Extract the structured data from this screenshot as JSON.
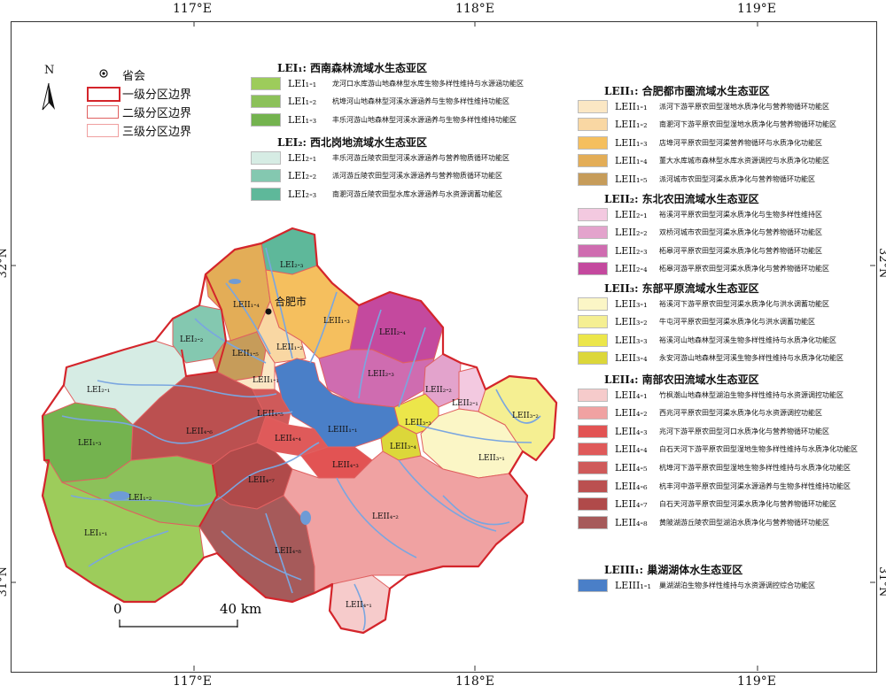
{
  "axes": {
    "top": [
      "117°E",
      "118°E",
      "119°E"
    ],
    "bottom": [
      "117°E",
      "118°E",
      "119°E"
    ],
    "left": [
      "32°N",
      "31°N"
    ],
    "right": [
      "32°N",
      "31°N"
    ]
  },
  "north_label": "N",
  "boundary_key": {
    "capital": "省会",
    "level1": "一级分区边界",
    "level2": "二级分区边界",
    "level3": "三级分区边界"
  },
  "scale_bar": {
    "start": "0",
    "end": "40 km"
  },
  "city_label": "合肥市",
  "colors": {
    "lake": "#4a7fc8",
    "level1_border": "#d4252b",
    "level2_border": "#e06060",
    "level3_border": "#f0a0a0",
    "river": "#7aa6e0"
  },
  "legend": {
    "groups": [
      {
        "title": "LEI₁: 西南森林流域水生态亚区",
        "items": [
          {
            "code": "LEI₁-₁",
            "desc": "龙河口水库游山地森林型水库生物多样性维持与水源涵功能区",
            "color": "#9dcc5b"
          },
          {
            "code": "LEI₁-₂",
            "desc": "杭埠河山地森林型河溪水源涵养与生物多样性维持功能区",
            "color": "#8cc15a"
          },
          {
            "code": "LEI₁-₃",
            "desc": "丰乐河游山地森林型河溪水源涵养与生物多样性维持功能区",
            "color": "#74b34f"
          }
        ]
      },
      {
        "title": "LEI₂: 西北岗地流域水生态亚区",
        "items": [
          {
            "code": "LEI₂-₁",
            "desc": "丰乐河游丘陵农田型河溪水源涵养与营养物质循环功能区",
            "color": "#d6ece4"
          },
          {
            "code": "LEI₂-₂",
            "desc": "派河游丘陵农田型河溪水源涵养与营养物质循环功能区",
            "color": "#84c8b0"
          },
          {
            "code": "LEI₂-₃",
            "desc": "南淝河游丘陵农田型水库水源涵养与水资源调蓄功能区",
            "color": "#5eb89a"
          }
        ]
      },
      {
        "title": "LEII₁: 合肥都市圈流域水生态亚区",
        "items": [
          {
            "code": "LEII₁-₁",
            "desc": "派河下游平原农田型湿地水质净化与营养物循环功能区",
            "color": "#fbe7c4"
          },
          {
            "code": "LEII₁-₂",
            "desc": "南淝河下游平原农田型湿地水质净化与营养物循环功能区",
            "color": "#f9d7a3"
          },
          {
            "code": "LEII₁-₃",
            "desc": "店埠河平原农田型河渠营养物循环与水质净化功能区",
            "color": "#f5bf5e"
          },
          {
            "code": "LEII₁-₄",
            "desc": "董大水库城市森林型水库水资源调控与水质净化功能区",
            "color": "#e3ad57"
          },
          {
            "code": "LEII₁-₅",
            "desc": "派河城市农田型河渠水质净化与营养物循环功能区",
            "color": "#c69c5a"
          }
        ]
      },
      {
        "title": "LEII₂: 东北农田流域水生态亚区",
        "items": [
          {
            "code": "LEII₂-₁",
            "desc": "裕溪河平原农田型河渠水质净化与生物多样性维持区",
            "color": "#f3c9e0"
          },
          {
            "code": "LEII₂-₂",
            "desc": "双桥河城市农田型河渠水质净化与营养物循环功能区",
            "color": "#e3a3cc"
          },
          {
            "code": "LEII₂-₃",
            "desc": "柘皋河平原农田型河渠水质净化与营养物循环功能区",
            "color": "#cf6cb0"
          },
          {
            "code": "LEII₂-₄",
            "desc": "柘皋河游平原农田型河渠水质净化与营养物循环功能区",
            "color": "#c4499e"
          }
        ]
      },
      {
        "title": "LEII₃: 东部平原流域水生态亚区",
        "items": [
          {
            "code": "LEII₃-₁",
            "desc": "裕溪河下游平原农田型河渠水质净化与洪水调蓄功能区",
            "color": "#fbf6c6"
          },
          {
            "code": "LEII₃-₂",
            "desc": "牛屯河平原农田型河渠水质净化与洪水调蓄功能区",
            "color": "#f5ef92"
          },
          {
            "code": "LEII₃-₃",
            "desc": "裕溪河山地森林型河溪生物多样性维持与水质净化功能区",
            "color": "#ece64a"
          },
          {
            "code": "LEII₃-₄",
            "desc": "永安河游山地森林型河溪生物多样性维持与水质净化功能区",
            "color": "#dcd73a"
          }
        ]
      },
      {
        "title": "LEII₄: 南部农田流域水生态亚区",
        "items": [
          {
            "code": "LEII₄-₁",
            "desc": "竹枫潮山地森林型湖泊生物多样性维持与水资源调控功能区",
            "color": "#f6cbcb"
          },
          {
            "code": "LEII₄-₂",
            "desc": "西兆河平原农田型河渠水质净化与水资源调控功能区",
            "color": "#f0a2a2"
          },
          {
            "code": "LEII₄-₃",
            "desc": "兆河下游平原农田型河口水质净化与营养物循环功能区",
            "color": "#e25353"
          },
          {
            "code": "LEII₄-₄",
            "desc": "白石天河下游平原农田型湿地生物多样性维持与水质净化功能区",
            "color": "#df5a5a"
          },
          {
            "code": "LEII₄-₅",
            "desc": "杭埠河下游平原农田型湿地生物多样性维持与水质净化功能区",
            "color": "#cf5a5a"
          },
          {
            "code": "LEII₄-₆",
            "desc": "杭丰河中游平原农田型河渠水源涵养与生物多样性维持功能区",
            "color": "#bb5050"
          },
          {
            "code": "LEII₄-₇",
            "desc": "白石天河游平原农田型河渠水质净化与营养物循环功能区",
            "color": "#b04a4a"
          },
          {
            "code": "LEII₄-₈",
            "desc": "黄陂湖游丘陵农田型湖泊水质净化与营养物循环功能区",
            "color": "#a65a5a"
          }
        ]
      },
      {
        "title": "LEIII₁: 巢湖湖体水生态亚区",
        "items": [
          {
            "code": "LEIII₁-₁",
            "desc": "巢湖湖泊生物多样性维持与水资源调控综合功能区",
            "color": "#4a7fc8"
          }
        ]
      }
    ]
  },
  "region_labels": [
    {
      "id": "LEI1-1",
      "text": "LEI₁-₁"
    },
    {
      "id": "LEI1-2",
      "text": "LEI₁-₂"
    },
    {
      "id": "LEI1-3",
      "text": "LEI₁-₃"
    },
    {
      "id": "LEI2-1",
      "text": "LEI₂-₁"
    },
    {
      "id": "LEI2-2",
      "text": "LEI₂-₂"
    },
    {
      "id": "LEI2-3",
      "text": "LEI₂-₃"
    },
    {
      "id": "LEII1-1",
      "text": "LEII₁-₁"
    },
    {
      "id": "LEII1-2",
      "text": "LEII₁-₂"
    },
    {
      "id": "LEII1-3",
      "text": "LEII₁-₃"
    },
    {
      "id": "LEII1-4",
      "text": "LEII₁-₄"
    },
    {
      "id": "LEII1-5",
      "text": "LEII₁-₅"
    },
    {
      "id": "LEII2-1",
      "text": "LEII₂-₁"
    },
    {
      "id": "LEII2-2",
      "text": "LEII₂-₂"
    },
    {
      "id": "LEII2-3",
      "text": "LEII₂-₃"
    },
    {
      "id": "LEII2-4",
      "text": "LEII₂-₄"
    },
    {
      "id": "LEII3-1",
      "text": "LEII₃-₁"
    },
    {
      "id": "LEII3-2",
      "text": "LEII₃-₂"
    },
    {
      "id": "LEII3-3",
      "text": "LEII₃-₃"
    },
    {
      "id": "LEII3-4",
      "text": "LEII₃-₄"
    },
    {
      "id": "LEII4-1",
      "text": "LEII₄-₁"
    },
    {
      "id": "LEII4-2",
      "text": "LEII₄-₂"
    },
    {
      "id": "LEII4-3",
      "text": "LEII₄-₃"
    },
    {
      "id": "LEII4-4",
      "text": "LEII₄-₄"
    },
    {
      "id": "LEII4-5",
      "text": "LEII₄-₅"
    },
    {
      "id": "LEII4-6",
      "text": "LEII₄-₆"
    },
    {
      "id": "LEII4-7",
      "text": "LEII₄-₇"
    },
    {
      "id": "LEII4-8",
      "text": "LEII₄-₈"
    },
    {
      "id": "LEIII1-1",
      "text": "LEIII₁-₁"
    }
  ]
}
